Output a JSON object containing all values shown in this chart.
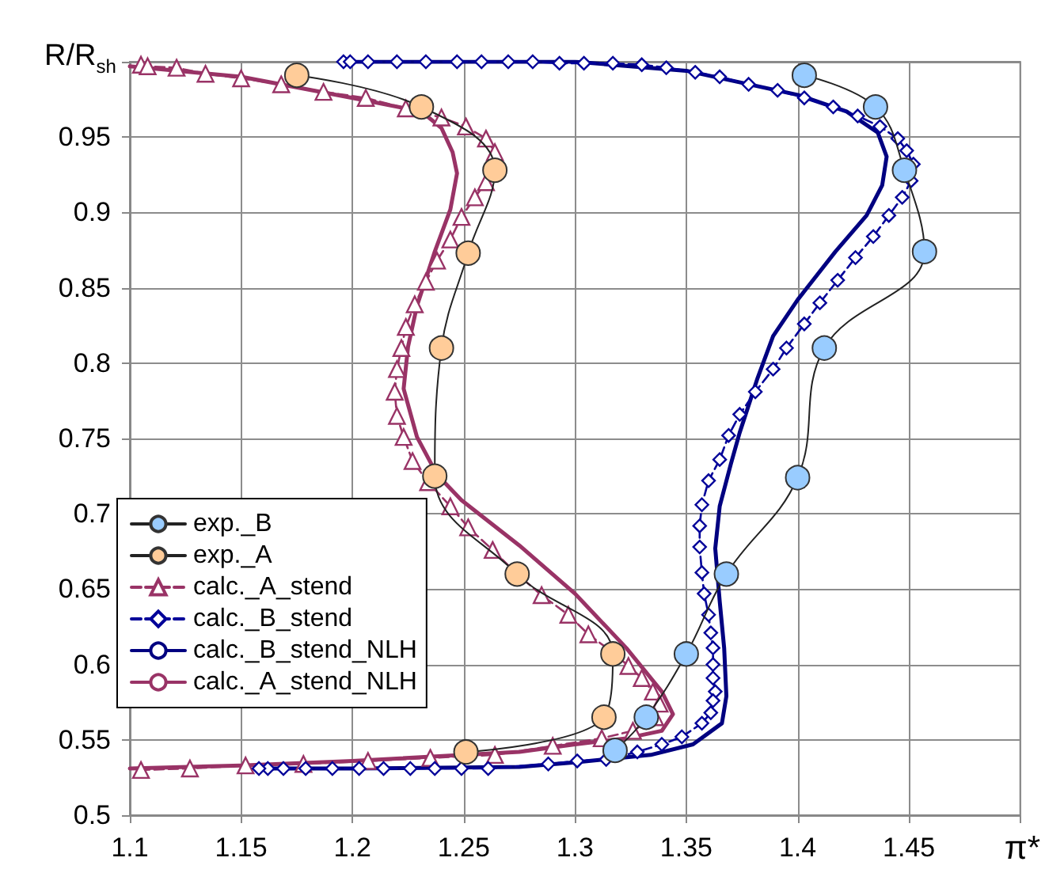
{
  "chart_data": {
    "type": "line",
    "xlabel": "π*",
    "ylabel": "R/R$_{sh}$",
    "xlim": [
      1.1,
      1.5
    ],
    "xticks": [
      1.1,
      1.15,
      1.2,
      1.25,
      1.3,
      1.35,
      1.4,
      1.45,
      {
        "value": 1.5,
        "label": null
      }
    ],
    "ylim": [
      0.5,
      1.0
    ],
    "yticks": [
      0.5,
      0.55,
      0.6,
      0.65,
      0.7,
      0.75,
      0.8,
      0.85,
      0.9,
      0.95,
      {
        "value": 1.0,
        "label": null
      }
    ],
    "grid": true,
    "legend": "left",
    "series": [
      {
        "name": "exp._B",
        "color": "#99ccff",
        "marker": "circle",
        "line_style": "solid",
        "x": [
          1.403,
          1.435,
          1.448,
          1.457,
          1.412,
          1.4,
          1.368,
          1.35,
          1.332,
          1.318
        ],
        "values": [
          0.991,
          0.97,
          0.928,
          0.874,
          0.81,
          0.724,
          0.66,
          0.607,
          0.565,
          0.543
        ]
      },
      {
        "name": "exp._A",
        "color": "#ffcc99",
        "marker": "circle",
        "line_style": "solid",
        "x": [
          1.175,
          1.231,
          1.264,
          1.252,
          1.24,
          1.237,
          1.274,
          1.317,
          1.313,
          1.251
        ],
        "values": [
          0.991,
          0.97,
          0.928,
          0.873,
          0.81,
          0.725,
          0.66,
          0.607,
          0.565,
          0.542
        ]
      },
      {
        "name": "calc._A_stend",
        "color": "#993366",
        "marker": "triangle",
        "line_style": "dashed",
        "x": [
          1.105,
          1.108,
          1.121,
          1.134,
          1.15,
          1.168,
          1.187,
          1.206,
          1.224,
          1.24,
          1.251,
          1.26,
          1.264,
          1.263,
          1.26,
          1.255,
          1.249,
          1.244,
          1.238,
          1.233,
          1.228,
          1.224,
          1.222,
          1.22,
          1.219,
          1.22,
          1.223,
          1.227,
          1.234,
          1.244,
          1.252,
          1.263,
          1.274,
          1.285,
          1.297,
          1.306,
          1.317,
          1.324,
          1.33,
          1.335,
          1.338,
          1.336,
          1.326,
          1.312,
          1.29,
          1.264,
          1.235,
          1.207,
          1.178,
          1.152,
          1.127,
          1.105
        ],
        "values": [
          0.998,
          0.997,
          0.996,
          0.992,
          0.989,
          0.985,
          0.98,
          0.976,
          0.969,
          0.963,
          0.957,
          0.949,
          0.94,
          0.928,
          0.92,
          0.91,
          0.897,
          0.882,
          0.868,
          0.854,
          0.839,
          0.824,
          0.81,
          0.796,
          0.781,
          0.765,
          0.751,
          0.735,
          0.721,
          0.705,
          0.691,
          0.676,
          0.66,
          0.646,
          0.633,
          0.62,
          0.608,
          0.599,
          0.591,
          0.582,
          0.574,
          0.565,
          0.556,
          0.551,
          0.546,
          0.54,
          0.538,
          0.536,
          0.534,
          0.533,
          0.531,
          0.53
        ]
      },
      {
        "name": "calc._B_stend",
        "color": "#000099",
        "marker": "diamond",
        "line_style": "dashed",
        "x": [
          1.196,
          1.199,
          1.207,
          1.22,
          1.233,
          1.247,
          1.258,
          1.27,
          1.281,
          1.293,
          1.304,
          1.317,
          1.33,
          1.341,
          1.354,
          1.365,
          1.378,
          1.391,
          1.403,
          1.416,
          1.427,
          1.437,
          1.445,
          1.449,
          1.452,
          1.451,
          1.447,
          1.441,
          1.434,
          1.426,
          1.418,
          1.41,
          1.403,
          1.395,
          1.389,
          1.381,
          1.374,
          1.369,
          1.365,
          1.36,
          1.357,
          1.356,
          1.356,
          1.357,
          1.358,
          1.36,
          1.361,
          1.362,
          1.362,
          1.362,
          1.363,
          1.362,
          1.361,
          1.357,
          1.348,
          1.339,
          1.328,
          1.314,
          1.301,
          1.288,
          1.261,
          1.249,
          1.237,
          1.226,
          1.214,
          1.203,
          1.191,
          1.179,
          1.169,
          1.162,
          1.158
        ],
        "values": [
          1.0,
          1.0,
          1.0,
          1.0,
          1.0,
          1.0,
          1.0,
          1.0,
          1.0,
          0.999,
          0.999,
          0.999,
          0.998,
          0.996,
          0.993,
          0.99,
          0.985,
          0.981,
          0.976,
          0.97,
          0.964,
          0.957,
          0.949,
          0.941,
          0.932,
          0.921,
          0.91,
          0.898,
          0.884,
          0.87,
          0.855,
          0.84,
          0.826,
          0.81,
          0.796,
          0.781,
          0.766,
          0.752,
          0.736,
          0.722,
          0.706,
          0.692,
          0.678,
          0.661,
          0.647,
          0.633,
          0.621,
          0.611,
          0.6,
          0.591,
          0.582,
          0.576,
          0.568,
          0.561,
          0.552,
          0.547,
          0.542,
          0.537,
          0.536,
          0.534,
          0.531,
          0.531,
          0.531,
          0.531,
          0.531,
          0.531,
          0.531,
          0.531,
          0.531,
          0.531,
          0.531
        ]
      },
      {
        "name": "calc._B_stend_NLH",
        "color": "#000080",
        "marker": "none",
        "line_style": "solid",
        "x": [
          1.2,
          1.3,
          1.35,
          1.4,
          1.422,
          1.436,
          1.44,
          1.438,
          1.431,
          1.417,
          1.4,
          1.389,
          1.382,
          1.374,
          1.37,
          1.365,
          1.363,
          1.365,
          1.367,
          1.368,
          1.366,
          1.353,
          1.334,
          1.3,
          1.275,
          1.2,
          1.16
        ],
        "values": [
          1.0,
          1.0,
          0.994,
          0.978,
          0.967,
          0.953,
          0.937,
          0.918,
          0.898,
          0.874,
          0.842,
          0.818,
          0.79,
          0.754,
          0.733,
          0.705,
          0.677,
          0.642,
          0.611,
          0.579,
          0.561,
          0.547,
          0.54,
          0.535,
          0.532,
          0.531,
          0.531
        ]
      },
      {
        "name": "calc._A_stend_NLH",
        "color": "#993366",
        "marker": "none",
        "line_style": "solid",
        "x": [
          1.1,
          1.15,
          1.2,
          1.231,
          1.24,
          1.245,
          1.247,
          1.244,
          1.237,
          1.229,
          1.225,
          1.223,
          1.229,
          1.238,
          1.249,
          1.275,
          1.3,
          1.323,
          1.339,
          1.344,
          1.339,
          1.323,
          1.3,
          1.275,
          1.2,
          1.15,
          1.1
        ],
        "values": [
          0.997,
          0.99,
          0.976,
          0.967,
          0.956,
          0.94,
          0.926,
          0.902,
          0.874,
          0.838,
          0.811,
          0.783,
          0.751,
          0.726,
          0.709,
          0.679,
          0.647,
          0.611,
          0.582,
          0.567,
          0.556,
          0.551,
          0.547,
          0.542,
          0.536,
          0.533,
          0.531
        ]
      }
    ]
  }
}
